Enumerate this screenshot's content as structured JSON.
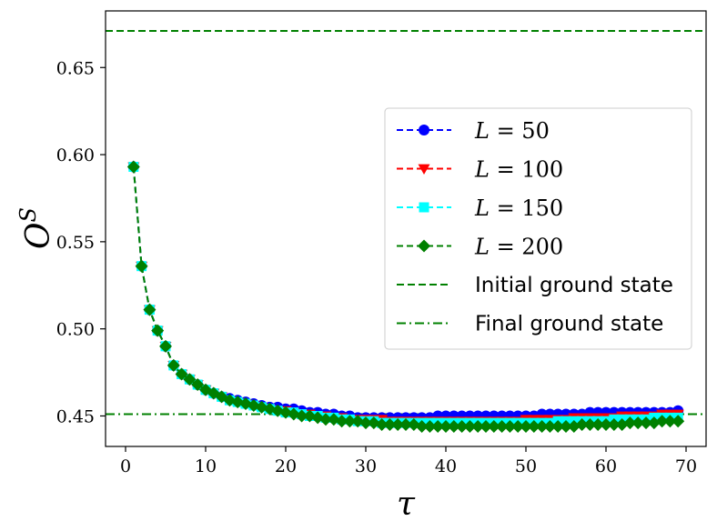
{
  "chart_data": {
    "type": "line",
    "xlabel": "τ",
    "ylabel_base": "O",
    "ylabel_sup": "S",
    "xlim": [
      -2.5,
      72.5
    ],
    "ylim": [
      0.4325,
      0.6825
    ],
    "xticks": [
      0,
      10,
      20,
      30,
      40,
      50,
      60,
      70
    ],
    "yticks": [
      0.45,
      0.5,
      0.55,
      0.6,
      0.65
    ],
    "ytick_labels": [
      "0.45",
      "0.50",
      "0.55",
      "0.60",
      "0.65"
    ],
    "grid": false,
    "legend_position": "center-right",
    "reference_lines": [
      {
        "name": "Initial ground state",
        "y": 0.671,
        "color": "#008000",
        "style": "dashed"
      },
      {
        "name": "Final ground state",
        "y": 0.451,
        "color": "#008000",
        "style": "dashdot"
      }
    ],
    "series": [
      {
        "name": "L = 50",
        "name_var": "L",
        "name_val": "50",
        "color": "#0000ff",
        "marker": "circle",
        "x": [
          1,
          2,
          3,
          4,
          5,
          6,
          7,
          8,
          9,
          10,
          11,
          12,
          13,
          14,
          15,
          16,
          17,
          18,
          19,
          20,
          21,
          22,
          23,
          24,
          25,
          26,
          27,
          28,
          29,
          30,
          31,
          32,
          33,
          34,
          35,
          36,
          37,
          38,
          39,
          40,
          41,
          42,
          43,
          44,
          45,
          46,
          47,
          48,
          49,
          50,
          51,
          52,
          53,
          54,
          55,
          56,
          57,
          58,
          59,
          60,
          61,
          62,
          63,
          64,
          65,
          66,
          67,
          68,
          69
        ],
        "y": [
          0.593,
          0.536,
          0.511,
          0.499,
          0.49,
          0.479,
          0.474,
          0.471,
          0.468,
          0.465,
          0.463,
          0.461,
          0.46,
          0.459,
          0.458,
          0.457,
          0.456,
          0.455,
          0.455,
          0.454,
          0.454,
          0.453,
          0.452,
          0.452,
          0.451,
          0.451,
          0.45,
          0.45,
          0.449,
          0.449,
          0.449,
          0.449,
          0.449,
          0.449,
          0.449,
          0.449,
          0.449,
          0.449,
          0.45,
          0.45,
          0.45,
          0.45,
          0.45,
          0.45,
          0.45,
          0.45,
          0.45,
          0.45,
          0.45,
          0.45,
          0.45,
          0.451,
          0.451,
          0.451,
          0.451,
          0.451,
          0.451,
          0.452,
          0.452,
          0.452,
          0.452,
          0.452,
          0.452,
          0.452,
          0.452,
          0.452,
          0.452,
          0.452,
          0.453
        ]
      },
      {
        "name": "L = 100",
        "name_var": "L",
        "name_val": "100",
        "color": "#ff0000",
        "marker": "triangle-down",
        "x": [
          1,
          2,
          3,
          4,
          5,
          6,
          7,
          8,
          9,
          10,
          11,
          12,
          13,
          14,
          15,
          16,
          17,
          18,
          19,
          20,
          21,
          22,
          23,
          24,
          25,
          26,
          27,
          28,
          29,
          30,
          31,
          32,
          33,
          34,
          35,
          36,
          37,
          38,
          39,
          40,
          41,
          42,
          43,
          44,
          45,
          46,
          47,
          48,
          49,
          50,
          51,
          52,
          53,
          54,
          55,
          56,
          57,
          58,
          59,
          60,
          61,
          62,
          63,
          64,
          65,
          66,
          67,
          68,
          69
        ],
        "y": [
          0.593,
          0.536,
          0.511,
          0.499,
          0.49,
          0.479,
          0.474,
          0.471,
          0.468,
          0.465,
          0.463,
          0.461,
          0.459,
          0.458,
          0.457,
          0.456,
          0.455,
          0.454,
          0.453,
          0.453,
          0.452,
          0.451,
          0.451,
          0.45,
          0.45,
          0.449,
          0.449,
          0.448,
          0.448,
          0.448,
          0.448,
          0.448,
          0.447,
          0.447,
          0.447,
          0.447,
          0.447,
          0.447,
          0.447,
          0.447,
          0.447,
          0.447,
          0.447,
          0.447,
          0.447,
          0.447,
          0.447,
          0.447,
          0.447,
          0.448,
          0.448,
          0.448,
          0.448,
          0.448,
          0.448,
          0.449,
          0.449,
          0.449,
          0.449,
          0.449,
          0.449,
          0.45,
          0.45,
          0.45,
          0.45,
          0.45,
          0.451,
          0.451,
          0.451
        ]
      },
      {
        "name": "L = 150",
        "name_var": "L",
        "name_val": "150",
        "color": "#00ffff",
        "marker": "square",
        "x": [
          1,
          2,
          3,
          4,
          5,
          6,
          7,
          8,
          9,
          10,
          11,
          12,
          13,
          14,
          15,
          16,
          17,
          18,
          19,
          20,
          21,
          22,
          23,
          24,
          25,
          26,
          27,
          28,
          29,
          30,
          31,
          32,
          33,
          34,
          35,
          36,
          37,
          38,
          39,
          40,
          41,
          42,
          43,
          44,
          45,
          46,
          47,
          48,
          49,
          50,
          51,
          52,
          53,
          54,
          55,
          56,
          57,
          58,
          59,
          60,
          61,
          62,
          63,
          64,
          65,
          66,
          67,
          68,
          69
        ],
        "y": [
          0.593,
          0.536,
          0.511,
          0.499,
          0.49,
          0.479,
          0.474,
          0.471,
          0.468,
          0.465,
          0.463,
          0.461,
          0.459,
          0.458,
          0.457,
          0.456,
          0.455,
          0.454,
          0.453,
          0.452,
          0.452,
          0.451,
          0.45,
          0.45,
          0.449,
          0.449,
          0.448,
          0.448,
          0.447,
          0.447,
          0.447,
          0.446,
          0.446,
          0.446,
          0.446,
          0.446,
          0.446,
          0.446,
          0.446,
          0.446,
          0.446,
          0.446,
          0.446,
          0.446,
          0.446,
          0.446,
          0.446,
          0.446,
          0.446,
          0.446,
          0.446,
          0.446,
          0.446,
          0.447,
          0.447,
          0.447,
          0.447,
          0.447,
          0.447,
          0.447,
          0.448,
          0.448,
          0.448,
          0.448,
          0.448,
          0.449,
          0.449,
          0.449,
          0.449
        ]
      },
      {
        "name": "L = 200",
        "name_var": "L",
        "name_val": "200",
        "color": "#008000",
        "marker": "diamond",
        "x": [
          1,
          2,
          3,
          4,
          5,
          6,
          7,
          8,
          9,
          10,
          11,
          12,
          13,
          14,
          15,
          16,
          17,
          18,
          19,
          20,
          21,
          22,
          23,
          24,
          25,
          26,
          27,
          28,
          29,
          30,
          31,
          32,
          33,
          34,
          35,
          36,
          37,
          38,
          39,
          40,
          41,
          42,
          43,
          44,
          45,
          46,
          47,
          48,
          49,
          50,
          51,
          52,
          53,
          54,
          55,
          56,
          57,
          58,
          59,
          60,
          61,
          62,
          63,
          64,
          65,
          66,
          67,
          68,
          69
        ],
        "y": [
          0.593,
          0.536,
          0.511,
          0.499,
          0.49,
          0.479,
          0.474,
          0.471,
          0.468,
          0.465,
          0.463,
          0.461,
          0.459,
          0.458,
          0.457,
          0.456,
          0.455,
          0.454,
          0.453,
          0.452,
          0.451,
          0.45,
          0.45,
          0.449,
          0.448,
          0.448,
          0.447,
          0.447,
          0.447,
          0.446,
          0.446,
          0.445,
          0.445,
          0.445,
          0.445,
          0.445,
          0.444,
          0.444,
          0.444,
          0.444,
          0.444,
          0.444,
          0.444,
          0.444,
          0.444,
          0.444,
          0.444,
          0.444,
          0.444,
          0.444,
          0.444,
          0.444,
          0.444,
          0.444,
          0.444,
          0.444,
          0.445,
          0.445,
          0.445,
          0.445,
          0.445,
          0.445,
          0.446,
          0.446,
          0.446,
          0.446,
          0.447,
          0.447,
          0.447
        ]
      }
    ]
  }
}
